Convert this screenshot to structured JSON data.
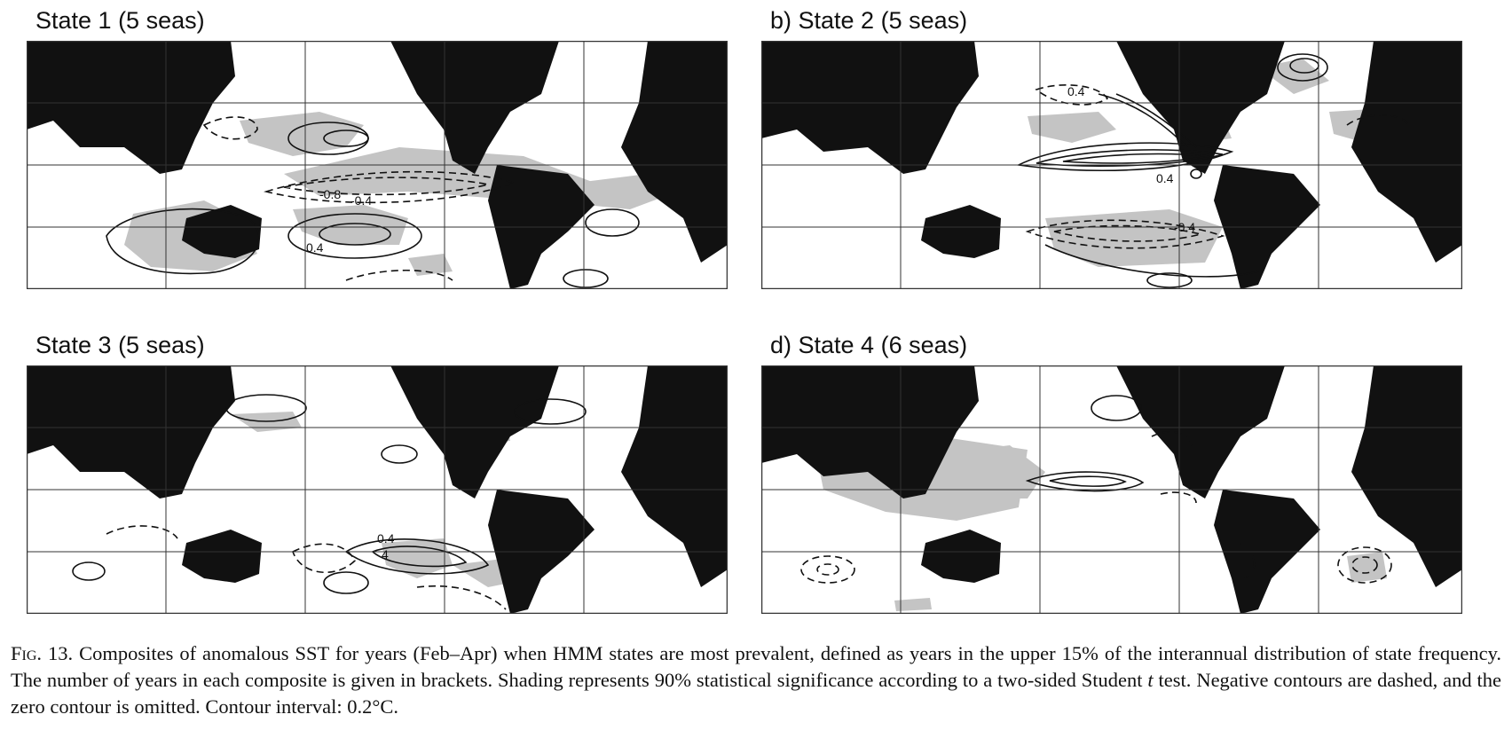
{
  "panels": [
    {
      "id": "a",
      "title": "State 1 (5 seas)",
      "labels": [
        {
          "text": "-0.8"
        },
        {
          "text": "-0.4"
        },
        {
          "text": "0.4"
        }
      ]
    },
    {
      "id": "b",
      "title": "b) State 2 (5 seas)",
      "labels": [
        {
          "text": "0.4"
        },
        {
          "text": "0.4"
        },
        {
          "text": "-0.4"
        }
      ]
    },
    {
      "id": "c",
      "title": "State 3 (5 seas)",
      "labels": [
        {
          "text": "0.4"
        },
        {
          "text": "4"
        }
      ]
    },
    {
      "id": "d",
      "title": "d) State 4 (6 seas)",
      "labels": []
    }
  ],
  "caption": {
    "fig_label": "Fig. 13.",
    "text_1": " Composites of anomalous SST for years (Feb–Apr) when HMM states are most prevalent, defined as years in the upper 15% of the interannual distribution of state frequency. The number of years in each composite is given in brackets. Shading represents 90% statistical significance according to a two-sided Student ",
    "t_symbol": "t",
    "text_2": " test. Negative contours are dashed, and the zero contour is omitted. Contour interval: 0.2°C."
  },
  "colors": {
    "land": "#111111",
    "shading": "#c4c4c4",
    "contour": "#111111",
    "grid": "#333333"
  }
}
